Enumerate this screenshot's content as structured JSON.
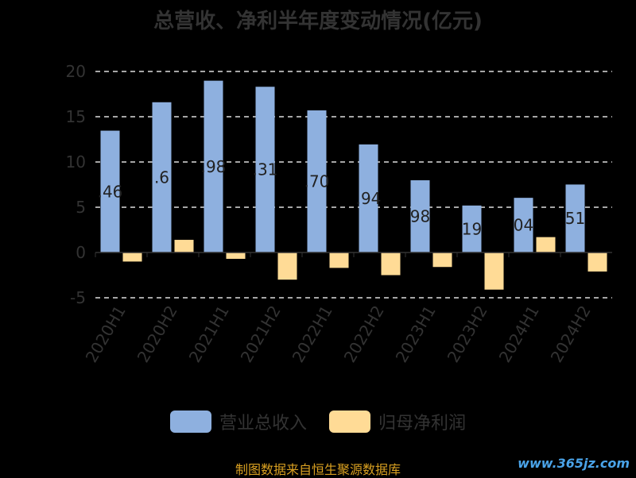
{
  "title": "总营收、净利半年度变动情况(亿元)",
  "chart_data": {
    "type": "bar",
    "categories": [
      "2020H1",
      "2020H2",
      "2021H1",
      "2021H2",
      "2022H1",
      "2022H2",
      "2023H1",
      "2023H2",
      "2024H1",
      "2024H2"
    ],
    "series": [
      {
        "name": "营业总收入",
        "color": "#8eb0df",
        "values": [
          13.46,
          16.6,
          18.98,
          18.31,
          15.7,
          11.94,
          7.98,
          5.19,
          6.04,
          7.51
        ],
        "labels": [
          ".46",
          ".6",
          ".98",
          ".31",
          ".70",
          ".94",
          "98",
          "19",
          "04",
          "51"
        ]
      },
      {
        "name": "归母净利润",
        "color": "#ffdb96",
        "values": [
          -1.0,
          1.4,
          -0.7,
          -3.0,
          -1.7,
          -2.5,
          -1.6,
          -4.1,
          1.7,
          -2.1
        ]
      }
    ],
    "ylim": [
      -5,
      20
    ],
    "yticks": [
      20,
      15,
      10,
      5,
      0,
      -5
    ],
    "grid": true,
    "legend_position": "bottom"
  },
  "legend": [
    {
      "label": "营业总收入",
      "color": "#8eb0df"
    },
    {
      "label": "归母净利润",
      "color": "#ffdb96"
    }
  ],
  "source_text": "制图数据来自恒生聚源数据库",
  "watermark_text": "www.365jz.com"
}
